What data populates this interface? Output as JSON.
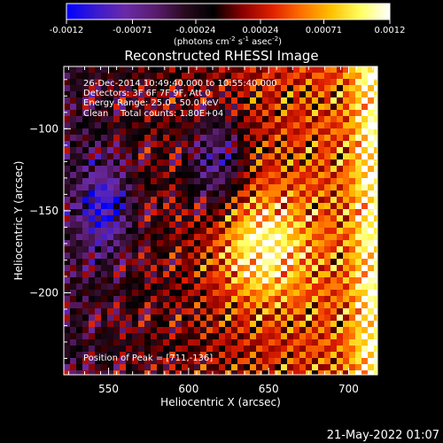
{
  "chart_data": {
    "type": "heatmap",
    "title": "Reconstructed RHESSI Image",
    "xlabel": "Heliocentric X (arcsec)",
    "ylabel": "Heliocentric Y (arcsec)",
    "xlim": [
      522,
      718
    ],
    "ylim": [
      -250,
      -62
    ],
    "x_ticks": [
      550,
      600,
      650,
      700
    ],
    "y_ticks": [
      -100,
      -150,
      -200
    ],
    "colorbar": {
      "range": [
        -0.0012,
        0.0012
      ],
      "ticks": [
        "-0.0012",
        "-0.00071",
        "-0.00024",
        "0.00024",
        "0.00071",
        "0.0012"
      ],
      "units_prefix": "(photons cm",
      "units_sup1": "-2",
      "units_mid": " s",
      "units_sup2": "-1",
      "units_mid2": " asec",
      "units_sup3": "-2",
      "units_suffix": ")",
      "colormap": [
        "#0000ff",
        "#3a1ad0",
        "#6a2aa8",
        "#5a1c70",
        "#2a0a20",
        "#000000",
        "#8c0000",
        "#e02000",
        "#ff7000",
        "#ffc000",
        "#ffff60",
        "#ffffff"
      ]
    },
    "annotations": {
      "time_range": "26-Dec-2014 10:49:40.000 to 10:55:40.000",
      "detectors": "Detectors: 3F 6F 7F 9F, Att 0",
      "energy_range": "Energy Range: 25.0 - 50.0 keV",
      "algorithm": "Clean",
      "total_counts": "Total counts: 1.80E+04",
      "peak_position": "Position of Peak = [711,-136]"
    },
    "peak": [
      711,
      -136
    ]
  },
  "footer": {
    "timestamp": "21-May-2022 01:07"
  }
}
